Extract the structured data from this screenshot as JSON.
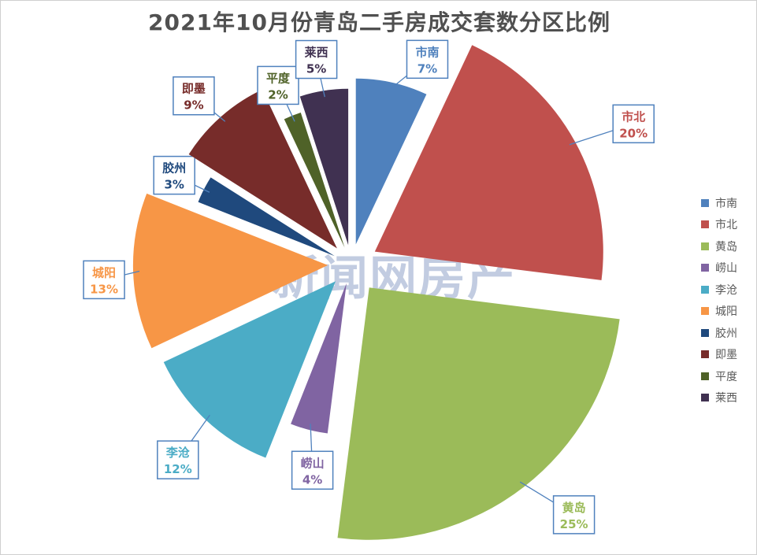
{
  "chart_data": {
    "type": "pie",
    "title": "2021年10月份青岛二手房成交套数分区比例",
    "legend_position": "right",
    "categories": [
      "市南",
      "市北",
      "黄岛",
      "崂山",
      "李沧",
      "城阳",
      "胶州",
      "即墨",
      "平度",
      "莱西"
    ],
    "values": [
      7,
      20,
      25,
      4,
      12,
      13,
      3,
      9,
      2,
      5
    ],
    "labels": [
      "7%",
      "20%",
      "25%",
      "4%",
      "12%",
      "13%",
      "3%",
      "9%",
      "2%",
      "5%"
    ],
    "colors": [
      "#4F81BD",
      "#C0504D",
      "#9BBB59",
      "#8064A2",
      "#4BACC6",
      "#F79646",
      "#1F497D",
      "#772C2A",
      "#4F6228",
      "#403151"
    ],
    "style": "exploded-radius-scaled"
  },
  "watermark": {
    "text": "新闻网房产"
  }
}
